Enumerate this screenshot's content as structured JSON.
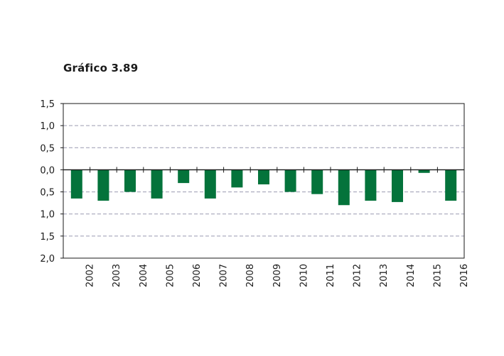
{
  "title": "Gráfico 3.89",
  "chart_data": {
    "type": "bar",
    "title": "Gráfico 3.89",
    "xlabel": "",
    "ylabel": "",
    "categories": [
      "2002",
      "2003",
      "2004",
      "2005",
      "2006",
      "2007",
      "2008",
      "2009",
      "2010",
      "2011",
      "2012",
      "2013",
      "2014",
      "2015",
      "2016"
    ],
    "values": [
      -0.65,
      -0.7,
      -0.5,
      -0.65,
      -0.3,
      -0.65,
      -0.4,
      -0.33,
      -0.5,
      -0.55,
      -0.8,
      -0.7,
      -0.73,
      -0.07,
      -0.7
    ],
    "ylim": [
      -2.0,
      1.5
    ],
    "y_ticks": [
      1.5,
      1.0,
      0.5,
      0.0,
      -0.5,
      -1.0,
      -1.5,
      -2.0
    ],
    "y_tick_labels": [
      "1,5",
      "1,0",
      "0,5",
      "0,0",
      "0,5",
      "1,0",
      "1,5",
      "2,0"
    ],
    "grid": true,
    "bar_color": "#04733b",
    "grid_color": "#9a9ab0"
  }
}
